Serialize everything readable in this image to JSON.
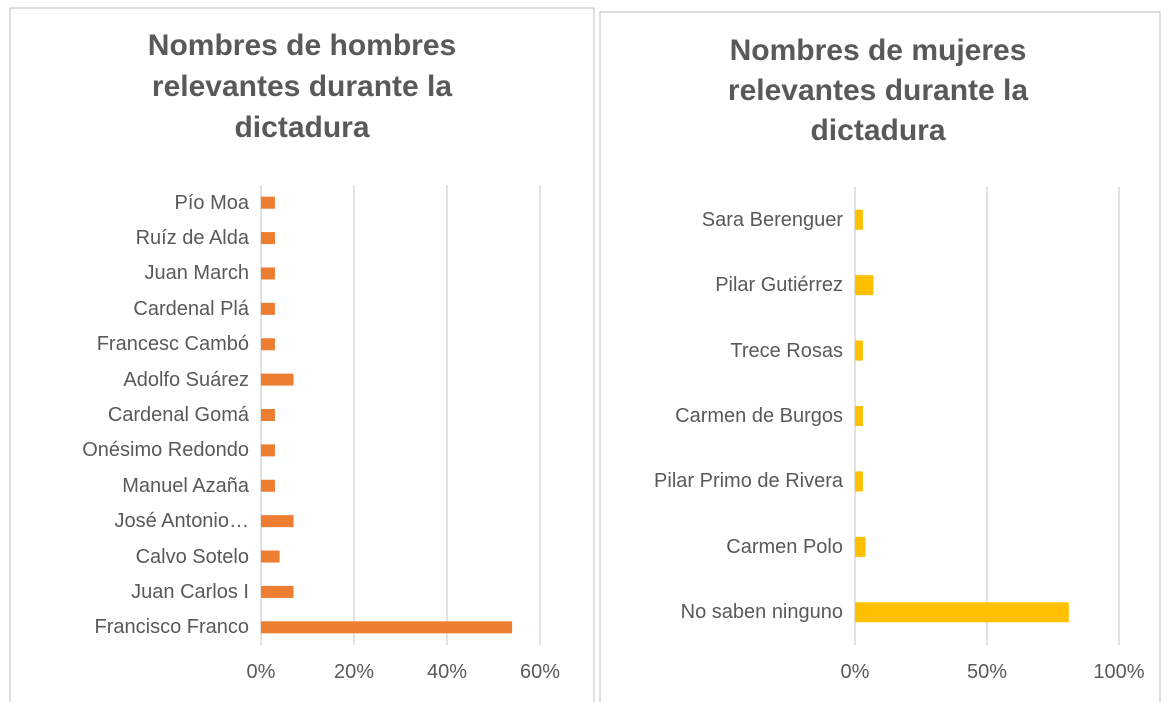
{
  "chart_data": [
    {
      "type": "bar",
      "orientation": "horizontal",
      "title": "Nombres de hombres relevantes durante la dictadura",
      "categories": [
        "Pío Moa",
        "Ruíz de Alda",
        "Juan March",
        "Cardenal Plá",
        "Francesc Cambó",
        "Adolfo Suárez",
        "Cardenal Gomá",
        "Onésimo Redondo",
        "Manuel Azaña",
        "José Antonio…",
        "Calvo Sotelo",
        "Juan Carlos I",
        "Francisco Franco"
      ],
      "values": [
        3,
        3,
        3,
        3,
        3,
        7,
        3,
        3,
        3,
        7,
        4,
        7,
        54
      ],
      "color": "#ed7d31",
      "xlim": [
        0,
        60
      ],
      "xticks": [
        {
          "value": 0,
          "label": "0%"
        },
        {
          "value": 20,
          "label": "20%"
        },
        {
          "value": 40,
          "label": "40%"
        },
        {
          "value": 60,
          "label": "60%"
        }
      ],
      "grid": true
    },
    {
      "type": "bar",
      "orientation": "horizontal",
      "title": "Nombres de mujeres relevantes durante la dictadura",
      "categories": [
        "Sara Berenguer",
        "Pilar Gutiérrez",
        "Trece Rosas",
        "Carmen de Burgos",
        "Pilar Primo de Rivera",
        "Carmen Polo",
        "No saben ninguno"
      ],
      "values": [
        3,
        7,
        3,
        3,
        3,
        4,
        81
      ],
      "color": "#ffc000",
      "xlim": [
        0,
        100
      ],
      "xticks": [
        {
          "value": 0,
          "label": "0%"
        },
        {
          "value": 50,
          "label": "50%"
        },
        {
          "value": 100,
          "label": "100%"
        }
      ],
      "grid": true
    }
  ]
}
